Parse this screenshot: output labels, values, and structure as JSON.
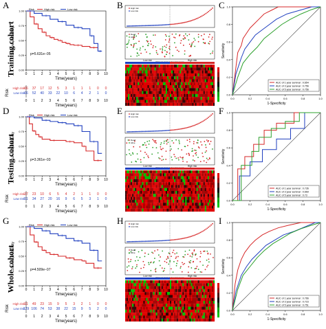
{
  "rows": [
    {
      "cohort": "Training cohort",
      "letters": [
        "A",
        "B",
        "C"
      ]
    },
    {
      "cohort": "Testing cohort",
      "letters": [
        "D",
        "E",
        "F"
      ]
    },
    {
      "cohort": "Whole cohort",
      "letters": [
        "G",
        "H",
        "I"
      ]
    }
  ],
  "km_text": {
    "legend_title": "Risk",
    "high_label": "High risk",
    "low_label": "Low risk",
    "xlabel": "Time(years)",
    "ylabel": "Survival probability",
    "risk_title": "Risk",
    "high_row_label": "High risk",
    "low_row_label": "Low risk"
  },
  "roc_text": {
    "xlabel": "1-Specificity",
    "ylabel": "Sensitivity"
  },
  "risk_text": {
    "xlabel": "Patients (increasing risk score)",
    "high_label": "High risk",
    "low_label": "Low risk",
    "dead_label": "Dead",
    "alive_label": "Alive"
  },
  "colors": {
    "high": "#d62728",
    "low": "#1f3fbf",
    "roc_1y": "#d62728",
    "roc_3y": "#1f3fbf",
    "roc_5y": "#2ca02c",
    "dead": "#d62728",
    "alive": "#2ca02c",
    "heat_low": "#00c000",
    "heat_mid": "#000000",
    "heat_high": "#e00000"
  },
  "chart_data": [
    {
      "panel": "A",
      "type": "line",
      "title": "",
      "xlabel": "Time(years)",
      "ylabel": "Survival probability",
      "xlim": [
        0,
        10
      ],
      "ylim": [
        0,
        1
      ],
      "x_ticks": [
        0,
        1,
        2,
        3,
        4,
        5,
        6,
        7,
        8,
        9,
        10
      ],
      "p_value": "p=5.631e−05",
      "series": [
        {
          "name": "High risk",
          "x": [
            0,
            0.5,
            1,
            1.5,
            2,
            2.5,
            3,
            3.5,
            4,
            4.5,
            5,
            5.5,
            6,
            7,
            8,
            9
          ],
          "y": [
            1.0,
            0.9,
            0.78,
            0.7,
            0.64,
            0.58,
            0.55,
            0.52,
            0.5,
            0.47,
            0.45,
            0.43,
            0.42,
            0.4,
            0.38,
            0.38
          ]
        },
        {
          "name": "Low risk",
          "x": [
            0,
            1,
            2,
            3,
            4,
            5,
            6,
            7,
            8,
            8.5,
            9,
            9.5
          ],
          "y": [
            1.0,
            0.96,
            0.92,
            0.86,
            0.82,
            0.76,
            0.72,
            0.7,
            0.58,
            0.45,
            0.32,
            0.32
          ]
        }
      ],
      "risk_table": {
        "High risk": [
          "66",
          "37",
          "17",
          "12",
          "5",
          "3",
          "1",
          "1",
          "1",
          "0",
          "0"
        ],
        "Low risk": [
          "66",
          "52",
          "40",
          "33",
          "22",
          "10",
          "6",
          "4",
          "2",
          "1",
          "0"
        ]
      }
    },
    {
      "panel": "D",
      "type": "line",
      "title": "",
      "xlabel": "Time(years)",
      "ylabel": "Survival probability",
      "xlim": [
        0,
        10
      ],
      "ylim": [
        0,
        1
      ],
      "x_ticks": [
        0,
        1,
        2,
        3,
        4,
        5,
        6,
        7,
        8,
        9,
        10
      ],
      "p_value": "p=3.361e−03",
      "series": [
        {
          "name": "High risk",
          "x": [
            0,
            0.4,
            0.8,
            1.2,
            1.6,
            2,
            3,
            4,
            5,
            6,
            7,
            7.5,
            8.5,
            9.5
          ],
          "y": [
            1.0,
            0.88,
            0.76,
            0.7,
            0.66,
            0.62,
            0.6,
            0.6,
            0.58,
            0.56,
            0.5,
            0.42,
            0.26,
            0.26
          ]
        },
        {
          "name": "Low risk",
          "x": [
            0,
            1,
            2,
            3,
            4,
            5,
            6,
            7,
            8,
            9,
            9.5
          ],
          "y": [
            1.0,
            0.98,
            0.94,
            0.92,
            0.9,
            0.88,
            0.85,
            0.75,
            0.58,
            0.38,
            0.38
          ]
        }
      ],
      "risk_table": {
        "High risk": [
          "37",
          "23",
          "10",
          "6",
          "5",
          "4",
          "2",
          "1",
          "1",
          "0",
          "0"
        ],
        "Low risk": [
          "51",
          "34",
          "27",
          "20",
          "16",
          "9",
          "6",
          "5",
          "3",
          "1",
          "0"
        ]
      }
    },
    {
      "panel": "G",
      "type": "line",
      "title": "",
      "xlabel": "Time(years)",
      "ylabel": "Survival probability",
      "xlim": [
        0,
        10
      ],
      "ylim": [
        0,
        1
      ],
      "x_ticks": [
        0,
        1,
        2,
        3,
        4,
        5,
        6,
        7,
        8,
        9,
        10
      ],
      "p_value": "p=4.509e−07",
      "series": [
        {
          "name": "High risk",
          "x": [
            0,
            0.5,
            1,
            1.5,
            2,
            2.5,
            3,
            4,
            5,
            6,
            7,
            7.5,
            8.5,
            9.5
          ],
          "y": [
            1.0,
            0.86,
            0.74,
            0.66,
            0.6,
            0.56,
            0.53,
            0.5,
            0.47,
            0.44,
            0.42,
            0.38,
            0.3,
            0.3
          ]
        },
        {
          "name": "Low risk",
          "x": [
            0,
            1,
            2,
            3,
            4,
            5,
            6,
            7,
            8,
            9,
            9.5
          ],
          "y": [
            1.0,
            0.97,
            0.93,
            0.88,
            0.85,
            0.8,
            0.76,
            0.72,
            0.6,
            0.42,
            0.42
          ]
        }
      ],
      "risk_table": {
        "High risk": [
          "91",
          "49",
          "23",
          "15",
          "9",
          "5",
          "3",
          "2",
          "1",
          "0",
          "0"
        ],
        "Low risk": [
          "129",
          "106",
          "74",
          "53",
          "38",
          "22",
          "15",
          "9",
          "5",
          "2",
          "0"
        ]
      }
    },
    {
      "panel": "C",
      "type": "line",
      "title": "",
      "xlabel": "1-Specificity",
      "ylabel": "Sensitivity",
      "xlim": [
        0,
        1
      ],
      "ylim": [
        0,
        1
      ],
      "series": [
        {
          "name": "AUC of 1 year survival : 0.654",
          "x": [
            0,
            0.04,
            0.06,
            0.1,
            0.12,
            0.16,
            0.2,
            0.24,
            0.3,
            0.36,
            0.44,
            0.52,
            0.6,
            0.72,
            0.86,
            1.0
          ],
          "y": [
            0,
            0.32,
            0.48,
            0.56,
            0.64,
            0.7,
            0.76,
            0.8,
            0.86,
            0.92,
            0.96,
            1.0,
            1.0,
            1.0,
            1.0,
            1.0
          ]
        },
        {
          "name": "AUC of 3 year survival : 0.756",
          "x": [
            0,
            0.04,
            0.1,
            0.14,
            0.2,
            0.26,
            0.34,
            0.42,
            0.5,
            0.62,
            0.76,
            0.9,
            1.0
          ],
          "y": [
            0,
            0.24,
            0.42,
            0.52,
            0.6,
            0.68,
            0.74,
            0.8,
            0.86,
            0.92,
            0.96,
            1.0,
            1.0
          ]
        },
        {
          "name": "AUC of 5 year survival : 0.756",
          "x": [
            0,
            0.06,
            0.12,
            0.2,
            0.28,
            0.36,
            0.46,
            0.56,
            0.66,
            0.78,
            0.9,
            1.0
          ],
          "y": [
            0,
            0.2,
            0.36,
            0.46,
            0.54,
            0.64,
            0.72,
            0.8,
            0.86,
            0.92,
            0.97,
            1.0
          ]
        }
      ]
    },
    {
      "panel": "F",
      "type": "line",
      "title": "",
      "xlabel": "1-Specificity",
      "ylabel": "Sensitivity",
      "xlim": [
        0,
        1
      ],
      "ylim": [
        0,
        1
      ],
      "series": [
        {
          "name": "AUC of 1 year survival : 0.736",
          "x": [
            0,
            0.06,
            0.06,
            0.14,
            0.14,
            0.24,
            0.24,
            0.36,
            0.36,
            0.5,
            0.5,
            0.7,
            0.7,
            1.0
          ],
          "y": [
            0,
            0.0,
            0.36,
            0.36,
            0.5,
            0.5,
            0.64,
            0.64,
            0.8,
            0.8,
            0.88,
            0.88,
            1.0,
            1.0
          ]
        },
        {
          "name": "AUC of 3 year survival : 0.669",
          "x": [
            0,
            0.08,
            0.08,
            0.2,
            0.2,
            0.34,
            0.34,
            0.5,
            0.5,
            0.66,
            0.66,
            0.82,
            0.82,
            1.0
          ],
          "y": [
            0,
            0.0,
            0.28,
            0.28,
            0.44,
            0.44,
            0.58,
            0.58,
            0.7,
            0.7,
            0.82,
            0.82,
            1.0,
            1.0
          ]
        },
        {
          "name": "AUC of 5 year survival : 0.73",
          "x": [
            0,
            0.1,
            0.1,
            0.22,
            0.22,
            0.3,
            0.3,
            0.44,
            0.44,
            0.6,
            0.6,
            0.76,
            0.76,
            1.0
          ],
          "y": [
            0,
            0.0,
            0.4,
            0.4,
            0.56,
            0.56,
            0.72,
            0.72,
            0.82,
            0.82,
            0.9,
            0.9,
            1.0,
            1.0
          ]
        }
      ]
    },
    {
      "panel": "I",
      "type": "line",
      "title": "",
      "xlabel": "1-Specificity",
      "ylabel": "Sensitivity",
      "xlim": [
        0,
        1
      ],
      "ylim": [
        0,
        1
      ],
      "series": [
        {
          "name": "AUC of 1 year survival : 0.766",
          "x": [
            0,
            0.03,
            0.06,
            0.1,
            0.14,
            0.2,
            0.26,
            0.34,
            0.42,
            0.52,
            0.64,
            0.78,
            0.9,
            1.0
          ],
          "y": [
            0,
            0.3,
            0.46,
            0.58,
            0.66,
            0.74,
            0.8,
            0.86,
            0.9,
            0.94,
            0.97,
            1.0,
            1.0,
            1.0
          ]
        },
        {
          "name": "AUC of 3 year survival : 0.723",
          "x": [
            0,
            0.04,
            0.1,
            0.16,
            0.22,
            0.3,
            0.38,
            0.48,
            0.58,
            0.7,
            0.82,
            0.94,
            1.0
          ],
          "y": [
            0,
            0.22,
            0.4,
            0.5,
            0.58,
            0.66,
            0.74,
            0.8,
            0.86,
            0.9,
            0.95,
            1.0,
            1.0
          ]
        },
        {
          "name": "AUC of 5 year survival : 0.751",
          "x": [
            0,
            0.06,
            0.12,
            0.2,
            0.28,
            0.36,
            0.46,
            0.56,
            0.66,
            0.78,
            0.9,
            1.0
          ],
          "y": [
            0,
            0.24,
            0.4,
            0.5,
            0.6,
            0.68,
            0.76,
            0.82,
            0.88,
            0.93,
            0.97,
            1.0
          ]
        }
      ]
    }
  ]
}
